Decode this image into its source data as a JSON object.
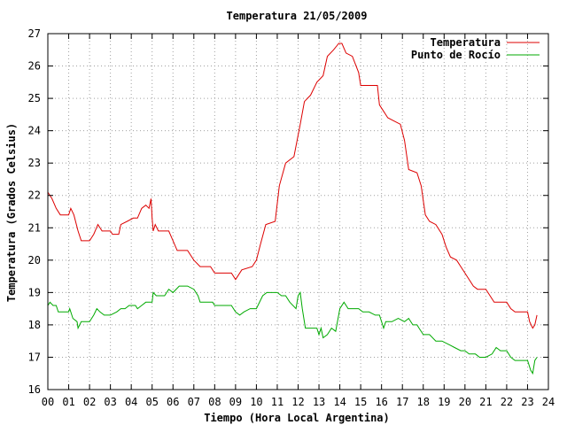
{
  "chart_data": {
    "type": "line",
    "title": "Temperatura 21/05/2009",
    "xlabel": "Tiempo (Hora Local Argentina)",
    "ylabel": "Temperatura (Grados Celsius)",
    "xlim": [
      0,
      24
    ],
    "ylim": [
      16,
      27
    ],
    "x_ticks": [
      "00",
      "01",
      "02",
      "03",
      "04",
      "05",
      "06",
      "07",
      "08",
      "09",
      "10",
      "11",
      "12",
      "13",
      "14",
      "15",
      "16",
      "17",
      "18",
      "19",
      "20",
      "21",
      "22",
      "23",
      "24"
    ],
    "y_ticks": [
      "16",
      "17",
      "18",
      "19",
      "20",
      "21",
      "22",
      "23",
      "24",
      "25",
      "26",
      "27"
    ],
    "grid": true,
    "legend_position": "top-right",
    "series": [
      {
        "name": "Temperatura",
        "color": "#dd0000",
        "points": [
          [
            0,
            22.1
          ],
          [
            0.2,
            21.9
          ],
          [
            0.4,
            21.6
          ],
          [
            0.6,
            21.4
          ],
          [
            1.0,
            21.4
          ],
          [
            1.1,
            21.6
          ],
          [
            1.25,
            21.4
          ],
          [
            1.45,
            20.9
          ],
          [
            1.6,
            20.6
          ],
          [
            2.0,
            20.6
          ],
          [
            2.2,
            20.8
          ],
          [
            2.4,
            21.1
          ],
          [
            2.6,
            20.9
          ],
          [
            3.0,
            20.9
          ],
          [
            3.1,
            20.8
          ],
          [
            3.4,
            20.8
          ],
          [
            3.5,
            21.1
          ],
          [
            3.8,
            21.2
          ],
          [
            4.1,
            21.3
          ],
          [
            4.3,
            21.3
          ],
          [
            4.5,
            21.6
          ],
          [
            4.7,
            21.7
          ],
          [
            4.85,
            21.6
          ],
          [
            4.95,
            21.9
          ],
          [
            5.0,
            21.3
          ],
          [
            5.05,
            20.9
          ],
          [
            5.15,
            21.1
          ],
          [
            5.3,
            20.9
          ],
          [
            5.8,
            20.9
          ],
          [
            6.0,
            20.6
          ],
          [
            6.2,
            20.3
          ],
          [
            6.7,
            20.3
          ],
          [
            7.0,
            20.0
          ],
          [
            7.3,
            19.8
          ],
          [
            7.8,
            19.8
          ],
          [
            8.0,
            19.6
          ],
          [
            8.8,
            19.6
          ],
          [
            9.0,
            19.4
          ],
          [
            9.3,
            19.7
          ],
          [
            9.8,
            19.8
          ],
          [
            10.0,
            20.0
          ],
          [
            10.2,
            20.5
          ],
          [
            10.45,
            21.1
          ],
          [
            10.9,
            21.2
          ],
          [
            11.1,
            22.3
          ],
          [
            11.4,
            23.0
          ],
          [
            11.8,
            23.2
          ],
          [
            12.1,
            24.2
          ],
          [
            12.3,
            24.9
          ],
          [
            12.6,
            25.1
          ],
          [
            12.9,
            25.5
          ],
          [
            13.2,
            25.7
          ],
          [
            13.4,
            26.3
          ],
          [
            13.7,
            26.5
          ],
          [
            13.95,
            26.7
          ],
          [
            14.1,
            26.7
          ],
          [
            14.3,
            26.4
          ],
          [
            14.6,
            26.3
          ],
          [
            14.9,
            25.8
          ],
          [
            15.0,
            25.4
          ],
          [
            15.8,
            25.4
          ],
          [
            15.9,
            24.8
          ],
          [
            16.1,
            24.6
          ],
          [
            16.3,
            24.4
          ],
          [
            16.6,
            24.3
          ],
          [
            16.9,
            24.2
          ],
          [
            17.1,
            23.7
          ],
          [
            17.3,
            22.8
          ],
          [
            17.7,
            22.7
          ],
          [
            17.9,
            22.3
          ],
          [
            18.1,
            21.4
          ],
          [
            18.3,
            21.2
          ],
          [
            18.6,
            21.1
          ],
          [
            18.9,
            20.8
          ],
          [
            19.1,
            20.4
          ],
          [
            19.3,
            20.1
          ],
          [
            19.6,
            20.0
          ],
          [
            19.8,
            19.8
          ],
          [
            20.0,
            19.6
          ],
          [
            20.4,
            19.2
          ],
          [
            20.6,
            19.1
          ],
          [
            21.0,
            19.1
          ],
          [
            21.2,
            18.9
          ],
          [
            21.4,
            18.7
          ],
          [
            22.0,
            18.7
          ],
          [
            22.2,
            18.5
          ],
          [
            22.4,
            18.4
          ],
          [
            22.7,
            18.4
          ],
          [
            23.0,
            18.4
          ],
          [
            23.1,
            18.1
          ],
          [
            23.25,
            17.9
          ],
          [
            23.35,
            18.0
          ],
          [
            23.45,
            18.3
          ]
        ]
      },
      {
        "name": "Punto de Rocío",
        "color": "#00aa00",
        "points": [
          [
            0,
            18.6
          ],
          [
            0.1,
            18.7
          ],
          [
            0.25,
            18.6
          ],
          [
            0.4,
            18.6
          ],
          [
            0.5,
            18.4
          ],
          [
            1.0,
            18.4
          ],
          [
            1.05,
            18.5
          ],
          [
            1.2,
            18.2
          ],
          [
            1.4,
            18.1
          ],
          [
            1.45,
            17.9
          ],
          [
            1.6,
            18.1
          ],
          [
            2.0,
            18.1
          ],
          [
            2.2,
            18.3
          ],
          [
            2.35,
            18.5
          ],
          [
            2.5,
            18.4
          ],
          [
            2.7,
            18.3
          ],
          [
            3.0,
            18.3
          ],
          [
            3.3,
            18.4
          ],
          [
            3.5,
            18.5
          ],
          [
            3.7,
            18.5
          ],
          [
            3.9,
            18.6
          ],
          [
            4.0,
            18.6
          ],
          [
            4.2,
            18.6
          ],
          [
            4.3,
            18.5
          ],
          [
            4.5,
            18.6
          ],
          [
            4.7,
            18.7
          ],
          [
            5.0,
            18.7
          ],
          [
            5.05,
            19.0
          ],
          [
            5.2,
            18.9
          ],
          [
            5.6,
            18.9
          ],
          [
            5.8,
            19.1
          ],
          [
            6.0,
            19.0
          ],
          [
            6.3,
            19.2
          ],
          [
            6.7,
            19.2
          ],
          [
            7.0,
            19.1
          ],
          [
            7.2,
            18.9
          ],
          [
            7.3,
            18.7
          ],
          [
            7.6,
            18.7
          ],
          [
            7.9,
            18.7
          ],
          [
            8.0,
            18.6
          ],
          [
            8.5,
            18.6
          ],
          [
            8.8,
            18.6
          ],
          [
            9.0,
            18.4
          ],
          [
            9.2,
            18.3
          ],
          [
            9.4,
            18.4
          ],
          [
            9.7,
            18.5
          ],
          [
            10.0,
            18.5
          ],
          [
            10.3,
            18.9
          ],
          [
            10.5,
            19.0
          ],
          [
            11.0,
            19.0
          ],
          [
            11.2,
            18.9
          ],
          [
            11.4,
            18.9
          ],
          [
            11.6,
            18.7
          ],
          [
            11.9,
            18.5
          ],
          [
            12.0,
            18.9
          ],
          [
            12.1,
            19.0
          ],
          [
            12.2,
            18.5
          ],
          [
            12.35,
            17.9
          ],
          [
            12.9,
            17.9
          ],
          [
            13.0,
            17.7
          ],
          [
            13.1,
            17.9
          ],
          [
            13.2,
            17.6
          ],
          [
            13.4,
            17.7
          ],
          [
            13.6,
            17.9
          ],
          [
            13.8,
            17.8
          ],
          [
            14.0,
            18.5
          ],
          [
            14.2,
            18.7
          ],
          [
            14.4,
            18.5
          ],
          [
            14.9,
            18.5
          ],
          [
            15.1,
            18.4
          ],
          [
            15.4,
            18.4
          ],
          [
            15.7,
            18.3
          ],
          [
            15.9,
            18.3
          ],
          [
            16.0,
            18.1
          ],
          [
            16.1,
            17.9
          ],
          [
            16.2,
            18.1
          ],
          [
            16.5,
            18.1
          ],
          [
            16.8,
            18.2
          ],
          [
            17.1,
            18.1
          ],
          [
            17.3,
            18.2
          ],
          [
            17.5,
            18.0
          ],
          [
            17.7,
            18.0
          ],
          [
            17.8,
            17.9
          ],
          [
            18.0,
            17.7
          ],
          [
            18.3,
            17.7
          ],
          [
            18.6,
            17.5
          ],
          [
            18.9,
            17.5
          ],
          [
            19.2,
            17.4
          ],
          [
            19.5,
            17.3
          ],
          [
            19.8,
            17.2
          ],
          [
            20.0,
            17.2
          ],
          [
            20.2,
            17.1
          ],
          [
            20.5,
            17.1
          ],
          [
            20.7,
            17.0
          ],
          [
            21.0,
            17.0
          ],
          [
            21.3,
            17.1
          ],
          [
            21.5,
            17.3
          ],
          [
            21.7,
            17.2
          ],
          [
            22.0,
            17.2
          ],
          [
            22.2,
            17.0
          ],
          [
            22.4,
            16.9
          ],
          [
            22.6,
            16.9
          ],
          [
            22.8,
            16.9
          ],
          [
            23.0,
            16.9
          ],
          [
            23.15,
            16.6
          ],
          [
            23.25,
            16.5
          ],
          [
            23.35,
            16.9
          ],
          [
            23.45,
            17.0
          ]
        ]
      }
    ]
  }
}
